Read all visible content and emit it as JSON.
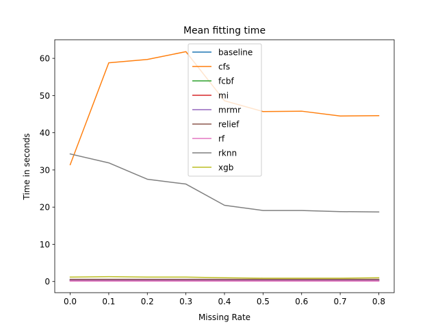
{
  "chart_data": {
    "type": "line",
    "title": "Mean fitting time",
    "xlabel": "Missing Rate",
    "ylabel": "Time in seconds",
    "x": [
      0.0,
      0.1,
      0.2,
      0.3,
      0.4,
      0.5,
      0.6,
      0.7,
      0.8
    ],
    "xlim": [
      -0.04,
      0.84
    ],
    "ylim": [
      -3.0,
      65.0
    ],
    "xticks": [
      0.0,
      0.1,
      0.2,
      0.3,
      0.4,
      0.5,
      0.6,
      0.7,
      0.8
    ],
    "xtick_labels": [
      "0.0",
      "0.1",
      "0.2",
      "0.3",
      "0.4",
      "0.5",
      "0.6",
      "0.7",
      "0.8"
    ],
    "yticks": [
      0,
      10,
      20,
      30,
      40,
      50,
      60
    ],
    "ytick_labels": [
      "0",
      "10",
      "20",
      "30",
      "40",
      "50",
      "60"
    ],
    "grid": false,
    "legend_position": "top-center",
    "series": [
      {
        "name": "baseline",
        "color": "#1f77b4",
        "values": [
          0.3,
          0.3,
          0.3,
          0.3,
          0.3,
          0.3,
          0.3,
          0.3,
          0.3
        ]
      },
      {
        "name": "cfs",
        "color": "#ff7f0e",
        "values": [
          31.4,
          58.8,
          59.7,
          61.8,
          48.6,
          45.7,
          45.8,
          44.5,
          44.6
        ]
      },
      {
        "name": "fcbf",
        "color": "#2ca02c",
        "values": [
          0.5,
          0.5,
          0.5,
          0.5,
          0.5,
          0.5,
          0.5,
          0.5,
          0.5
        ]
      },
      {
        "name": "mi",
        "color": "#d62728",
        "values": [
          0.2,
          0.2,
          0.2,
          0.2,
          0.2,
          0.2,
          0.2,
          0.2,
          0.2
        ]
      },
      {
        "name": "mrmr",
        "color": "#9467bd",
        "values": [
          0.4,
          0.4,
          0.4,
          0.4,
          0.4,
          0.4,
          0.4,
          0.4,
          0.4
        ]
      },
      {
        "name": "relief",
        "color": "#8c564b",
        "values": [
          0.6,
          0.6,
          0.6,
          0.6,
          0.6,
          0.6,
          0.6,
          0.6,
          0.6
        ]
      },
      {
        "name": "rf",
        "color": "#e377c2",
        "values": [
          0.1,
          0.1,
          0.1,
          0.1,
          0.1,
          0.1,
          0.1,
          0.1,
          0.1
        ]
      },
      {
        "name": "rknn",
        "color": "#7f7f7f",
        "values": [
          34.3,
          31.9,
          27.5,
          26.2,
          20.5,
          19.1,
          19.1,
          18.8,
          18.7
        ]
      },
      {
        "name": "xgb",
        "color": "#bcbd22",
        "values": [
          1.2,
          1.3,
          1.2,
          1.2,
          1.0,
          0.9,
          0.9,
          0.9,
          1.0
        ]
      }
    ]
  }
}
